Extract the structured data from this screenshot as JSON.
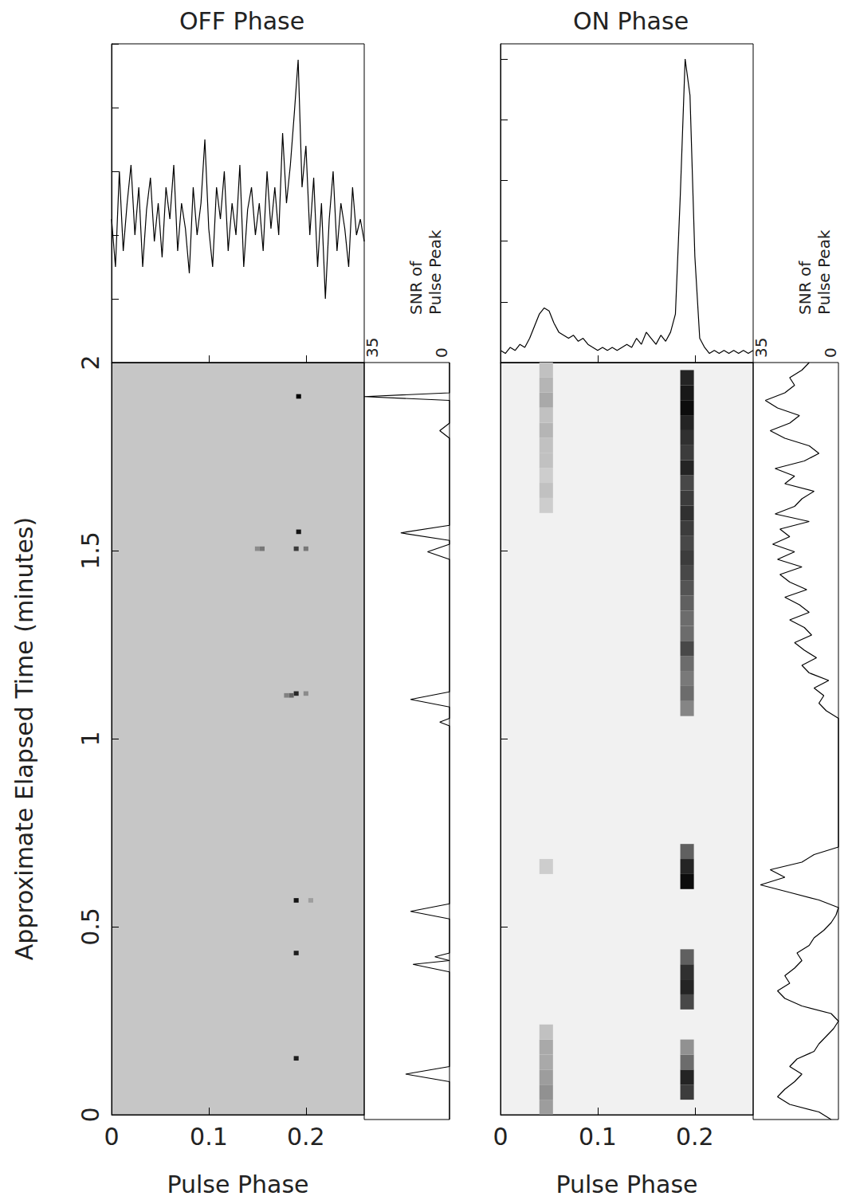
{
  "chart_data": [
    {
      "title": "OFF Phase",
      "profile": {
        "type": "line",
        "color": "#000000",
        "tick_labels": false,
        "xlim": [
          0,
          0.26
        ],
        "xticks": [
          0,
          0.1,
          0.2
        ],
        "ylim": [
          0,
          1
        ],
        "yticks": [
          0,
          0.2,
          0.4,
          0.6,
          0.8,
          1
        ],
        "x": [
          0,
          0.004,
          0.008,
          0.012,
          0.016,
          0.02,
          0.024,
          0.028,
          0.032,
          0.036,
          0.04,
          0.044,
          0.048,
          0.052,
          0.056,
          0.06,
          0.064,
          0.068,
          0.072,
          0.076,
          0.08,
          0.084,
          0.088,
          0.092,
          0.096,
          0.1,
          0.104,
          0.108,
          0.112,
          0.116,
          0.12,
          0.124,
          0.128,
          0.132,
          0.136,
          0.14,
          0.144,
          0.148,
          0.152,
          0.156,
          0.16,
          0.164,
          0.168,
          0.172,
          0.176,
          0.18,
          0.184,
          0.188,
          0.192,
          0.196,
          0.2,
          0.204,
          0.208,
          0.212,
          0.216,
          0.22,
          0.224,
          0.228,
          0.232,
          0.236,
          0.24,
          0.244,
          0.248,
          0.252,
          0.256,
          0.26
        ],
        "values": [
          0.45,
          0.3,
          0.6,
          0.35,
          0.5,
          0.62,
          0.4,
          0.55,
          0.3,
          0.48,
          0.58,
          0.38,
          0.5,
          0.33,
          0.55,
          0.45,
          0.62,
          0.35,
          0.5,
          0.42,
          0.28,
          0.55,
          0.4,
          0.5,
          0.7,
          0.42,
          0.3,
          0.55,
          0.45,
          0.6,
          0.35,
          0.5,
          0.4,
          0.62,
          0.3,
          0.48,
          0.55,
          0.4,
          0.5,
          0.35,
          0.6,
          0.42,
          0.55,
          0.4,
          0.72,
          0.5,
          0.62,
          0.78,
          0.95,
          0.55,
          0.68,
          0.4,
          0.58,
          0.3,
          0.5,
          0.2,
          0.45,
          0.6,
          0.35,
          0.5,
          0.42,
          0.3,
          0.55,
          0.4,
          0.45,
          0.38
        ]
      },
      "image": {
        "type": "heatmap",
        "color": "#c6c6c6",
        "tick_labels": true,
        "xlabel": "Pulse Phase",
        "ylabel": "Approximate Elapsed Time (minutes)",
        "xlim": [
          0,
          0.26
        ],
        "xticks": [
          0,
          0.1,
          0.2
        ],
        "ylim": [
          0,
          2
        ],
        "yticks": [
          0,
          0.5,
          1,
          1.5,
          2
        ],
        "color_range": [
          0,
          1
        ],
        "cell_size": [
          0.005,
          0.012
        ],
        "cells": [
          [
            0.1925,
            1.91,
            1
          ],
          [
            0.1925,
            1.55,
            0.9
          ],
          [
            0.19,
            1.505,
            0.7
          ],
          [
            0.2,
            1.505,
            0.4
          ],
          [
            0.155,
            1.505,
            0.4
          ],
          [
            0.15,
            1.505,
            0.3
          ],
          [
            0.19,
            1.12,
            0.8
          ],
          [
            0.185,
            1.115,
            0.5
          ],
          [
            0.18,
            1.115,
            0.35
          ],
          [
            0.2,
            1.12,
            0.3
          ],
          [
            0.19,
            0.57,
            0.9
          ],
          [
            0.205,
            0.57,
            0.2
          ],
          [
            0.19,
            0.43,
            0.85
          ],
          [
            0.19,
            0.15,
            0.85
          ]
        ]
      },
      "snr": {
        "type": "line",
        "color": "#000000",
        "tick_labels": "x",
        "xlabel": "SNR of Pulse Peak",
        "xlim": [
          0,
          35
        ],
        "xticks": [
          0,
          35
        ],
        "ylim": [
          0,
          2
        ],
        "time": [
          0,
          0.1,
          0.12,
          0.14,
          0.39,
          0.41,
          0.42,
          0.43,
          0.44,
          0.53,
          0.55,
          0.57,
          1.04,
          1.05,
          1.06,
          1.09,
          1.11,
          1.13,
          1.48,
          1.5,
          1.52,
          1.53,
          1.55,
          1.57,
          1.8,
          1.82,
          1.84,
          1.9,
          1.91,
          1.92,
          2
        ],
        "values": [
          0,
          0,
          18,
          0,
          0,
          15,
          0,
          6,
          0,
          0,
          16,
          0,
          0,
          4,
          0,
          0,
          16,
          0,
          0,
          9,
          0,
          0,
          20,
          0,
          0,
          4,
          0,
          0,
          35,
          0,
          0
        ]
      }
    },
    {
      "title": "ON Phase",
      "profile": {
        "type": "line",
        "color": "#000000",
        "tick_labels": false,
        "xlim": [
          0,
          0.26
        ],
        "xticks": [
          0,
          0.1,
          0.2
        ],
        "ylim": [
          0,
          1.05
        ],
        "yticks": [
          0,
          0.2,
          0.4,
          0.6,
          0.8,
          1
        ],
        "x": [
          0,
          0.005,
          0.01,
          0.015,
          0.02,
          0.025,
          0.03,
          0.035,
          0.04,
          0.045,
          0.05,
          0.055,
          0.06,
          0.065,
          0.07,
          0.075,
          0.08,
          0.085,
          0.09,
          0.095,
          0.1,
          0.105,
          0.11,
          0.115,
          0.12,
          0.125,
          0.13,
          0.135,
          0.14,
          0.145,
          0.15,
          0.155,
          0.16,
          0.165,
          0.17,
          0.175,
          0.18,
          0.185,
          0.19,
          0.195,
          0.2,
          0.205,
          0.21,
          0.215,
          0.22,
          0.225,
          0.23,
          0.235,
          0.24,
          0.245,
          0.25,
          0.255,
          0.26
        ],
        "values": [
          0.04,
          0.03,
          0.05,
          0.04,
          0.06,
          0.05,
          0.08,
          0.12,
          0.16,
          0.18,
          0.17,
          0.13,
          0.1,
          0.09,
          0.08,
          0.09,
          0.07,
          0.08,
          0.06,
          0.05,
          0.04,
          0.05,
          0.04,
          0.05,
          0.04,
          0.05,
          0.06,
          0.05,
          0.08,
          0.06,
          0.1,
          0.08,
          0.06,
          0.09,
          0.07,
          0.1,
          0.16,
          0.55,
          1.0,
          0.88,
          0.35,
          0.08,
          0.05,
          0.03,
          0.04,
          0.03,
          0.04,
          0.03,
          0.04,
          0.03,
          0.04,
          0.03,
          0.04
        ]
      },
      "image": {
        "type": "heatmap",
        "color": "#f1f1f1",
        "tick_labels": "x",
        "xlabel": "Pulse Phase",
        "xlim": [
          0,
          0.26
        ],
        "xticks": [
          0,
          0.1,
          0.2
        ],
        "ylim": [
          0,
          2
        ],
        "yticks": [
          0,
          0.5,
          1,
          1.5,
          2
        ],
        "color_range": [
          0,
          1
        ],
        "cell_size": [
          0.014,
          0.04
        ],
        "cells": [
          [
            0.192,
            0.06,
            0.75
          ],
          [
            0.192,
            0.1,
            0.85
          ],
          [
            0.192,
            0.14,
            0.55
          ],
          [
            0.192,
            0.18,
            0.4
          ],
          [
            0.192,
            0.3,
            0.7
          ],
          [
            0.192,
            0.34,
            0.85
          ],
          [
            0.192,
            0.38,
            0.8
          ],
          [
            0.192,
            0.42,
            0.6
          ],
          [
            0.192,
            0.62,
            0.95
          ],
          [
            0.192,
            0.66,
            0.85
          ],
          [
            0.192,
            0.7,
            0.6
          ],
          [
            0.192,
            1.08,
            0.45
          ],
          [
            0.192,
            1.12,
            0.55
          ],
          [
            0.192,
            1.16,
            0.5
          ],
          [
            0.192,
            1.2,
            0.55
          ],
          [
            0.192,
            1.24,
            0.7
          ],
          [
            0.192,
            1.28,
            0.55
          ],
          [
            0.192,
            1.32,
            0.55
          ],
          [
            0.192,
            1.36,
            0.6
          ],
          [
            0.192,
            1.4,
            0.65
          ],
          [
            0.192,
            1.44,
            0.7
          ],
          [
            0.192,
            1.48,
            0.75
          ],
          [
            0.192,
            1.52,
            0.7
          ],
          [
            0.192,
            1.56,
            0.75
          ],
          [
            0.192,
            1.6,
            0.8
          ],
          [
            0.192,
            1.64,
            0.75
          ],
          [
            0.192,
            1.68,
            0.7
          ],
          [
            0.192,
            1.72,
            0.85
          ],
          [
            0.192,
            1.76,
            0.75
          ],
          [
            0.192,
            1.8,
            0.8
          ],
          [
            0.192,
            1.84,
            0.85
          ],
          [
            0.192,
            1.88,
            0.95
          ],
          [
            0.192,
            1.92,
            0.9
          ],
          [
            0.192,
            1.96,
            0.85
          ],
          [
            0.047,
            0.02,
            0.35
          ],
          [
            0.047,
            0.06,
            0.4
          ],
          [
            0.047,
            0.1,
            0.35
          ],
          [
            0.047,
            0.14,
            0.3
          ],
          [
            0.047,
            0.18,
            0.3
          ],
          [
            0.047,
            0.22,
            0.2
          ],
          [
            0.047,
            0.66,
            0.15
          ],
          [
            0.047,
            1.62,
            0.15
          ],
          [
            0.047,
            1.66,
            0.2
          ],
          [
            0.047,
            1.7,
            0.15
          ],
          [
            0.047,
            1.74,
            0.2
          ],
          [
            0.047,
            1.78,
            0.2
          ],
          [
            0.047,
            1.82,
            0.25
          ],
          [
            0.047,
            1.86,
            0.2
          ],
          [
            0.047,
            1.9,
            0.3
          ],
          [
            0.047,
            1.94,
            0.25
          ],
          [
            0.047,
            1.98,
            0.2
          ]
        ]
      },
      "snr": {
        "type": "line",
        "color": "#000000",
        "tick_labels": "x",
        "xlabel": "SNR of Pulse Peak",
        "xlim": [
          0,
          35
        ],
        "xticks": [
          0,
          35
        ],
        "ylim": [
          0,
          2
        ],
        "time": [
          0,
          0.02,
          0.04,
          0.06,
          0.08,
          0.1,
          0.12,
          0.14,
          0.16,
          0.18,
          0.2,
          0.22,
          0.24,
          0.26,
          0.28,
          0.3,
          0.32,
          0.34,
          0.36,
          0.38,
          0.4,
          0.42,
          0.44,
          0.46,
          0.48,
          0.5,
          0.52,
          0.54,
          0.56,
          0.58,
          0.6,
          0.62,
          0.64,
          0.66,
          0.68,
          0.7,
          0.72,
          1.06,
          1.08,
          1.1,
          1.12,
          1.14,
          1.16,
          1.18,
          1.2,
          1.22,
          1.24,
          1.26,
          1.28,
          1.3,
          1.32,
          1.34,
          1.36,
          1.38,
          1.4,
          1.42,
          1.44,
          1.46,
          1.48,
          1.5,
          1.52,
          1.54,
          1.56,
          1.58,
          1.6,
          1.62,
          1.64,
          1.66,
          1.68,
          1.7,
          1.72,
          1.74,
          1.76,
          1.78,
          1.8,
          1.82,
          1.84,
          1.86,
          1.88,
          1.9,
          1.92,
          1.94,
          1.96,
          1.98,
          2
        ],
        "values": [
          3,
          8,
          20,
          25,
          22,
          18,
          15,
          20,
          17,
          10,
          8,
          5,
          2,
          0,
          3,
          15,
          22,
          25,
          20,
          22,
          18,
          15,
          17,
          12,
          10,
          6,
          3,
          1,
          0,
          8,
          20,
          32,
          22,
          28,
          15,
          10,
          0,
          0,
          5,
          8,
          6,
          10,
          4,
          12,
          15,
          9,
          14,
          18,
          11,
          14,
          20,
          12,
          16,
          22,
          13,
          20,
          24,
          15,
          25,
          18,
          27,
          20,
          24,
          12,
          26,
          18,
          15,
          10,
          22,
          18,
          26,
          14,
          8,
          12,
          22,
          28,
          20,
          16,
          25,
          30,
          22,
          18,
          20,
          15,
          12
        ]
      }
    }
  ]
}
